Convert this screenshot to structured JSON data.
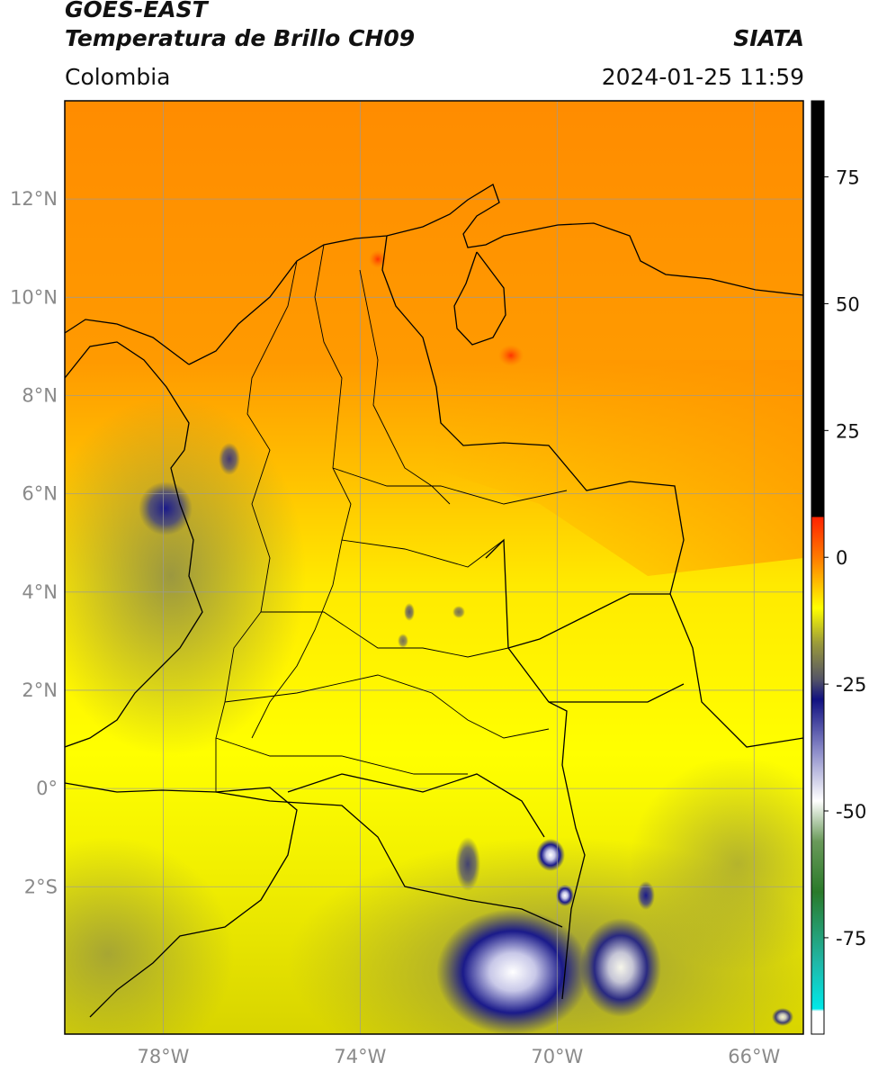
{
  "header": {
    "satellite": "GOES-EAST",
    "product": "Temperatura de Brillo CH09",
    "brand": "SIATA",
    "region": "Colombia",
    "datetime": "2024-01-25 11:59"
  },
  "map": {
    "lon_range": [
      -80,
      -65
    ],
    "lat_range": [
      -5.0,
      14.0
    ],
    "lon_ticks": [
      {
        "value": -78,
        "label": "78°W"
      },
      {
        "value": -74,
        "label": "74°W"
      },
      {
        "value": -70,
        "label": "70°W"
      },
      {
        "value": -66,
        "label": "66°W"
      }
    ],
    "lat_ticks": [
      {
        "value": 12,
        "label": "12°N"
      },
      {
        "value": 10,
        "label": "10°N"
      },
      {
        "value": 8,
        "label": "8°N"
      },
      {
        "value": 6,
        "label": "6°N"
      },
      {
        "value": 4,
        "label": "4°N"
      },
      {
        "value": 2,
        "label": "2°N"
      },
      {
        "value": 0,
        "label": "0°"
      },
      {
        "value": -2,
        "label": "2°S"
      }
    ],
    "gridlines": true
  },
  "colorbar": {
    "range": [
      -94,
      90
    ],
    "ticks": [
      {
        "value": 75,
        "label": "75"
      },
      {
        "value": 50,
        "label": "50"
      },
      {
        "value": 25,
        "label": "25"
      },
      {
        "value": 0,
        "label": "0"
      },
      {
        "value": -25,
        "label": "-25"
      },
      {
        "value": -50,
        "label": "-50"
      },
      {
        "value": -75,
        "label": "-75"
      }
    ],
    "stops": [
      {
        "value": 90,
        "color": "#000000"
      },
      {
        "value": 8,
        "color": "#000000"
      },
      {
        "value": 7.9,
        "color": "#ff2200"
      },
      {
        "value": 0,
        "color": "#ff7a00"
      },
      {
        "value": -10,
        "color": "#ffff00"
      },
      {
        "value": -17,
        "color": "#9a9a3a"
      },
      {
        "value": -24,
        "color": "#555566"
      },
      {
        "value": -28,
        "color": "#101080"
      },
      {
        "value": -38,
        "color": "#8a8ac8"
      },
      {
        "value": -48,
        "color": "#ffffff"
      },
      {
        "value": -56,
        "color": "#6a9a5a"
      },
      {
        "value": -66,
        "color": "#2a7a2a"
      },
      {
        "value": -80,
        "color": "#20b8a8"
      },
      {
        "value": -89,
        "color": "#00e8e8"
      },
      {
        "value": -89.5,
        "color": "#ffffff"
      },
      {
        "value": -94,
        "color": "#ffffff"
      }
    ]
  }
}
